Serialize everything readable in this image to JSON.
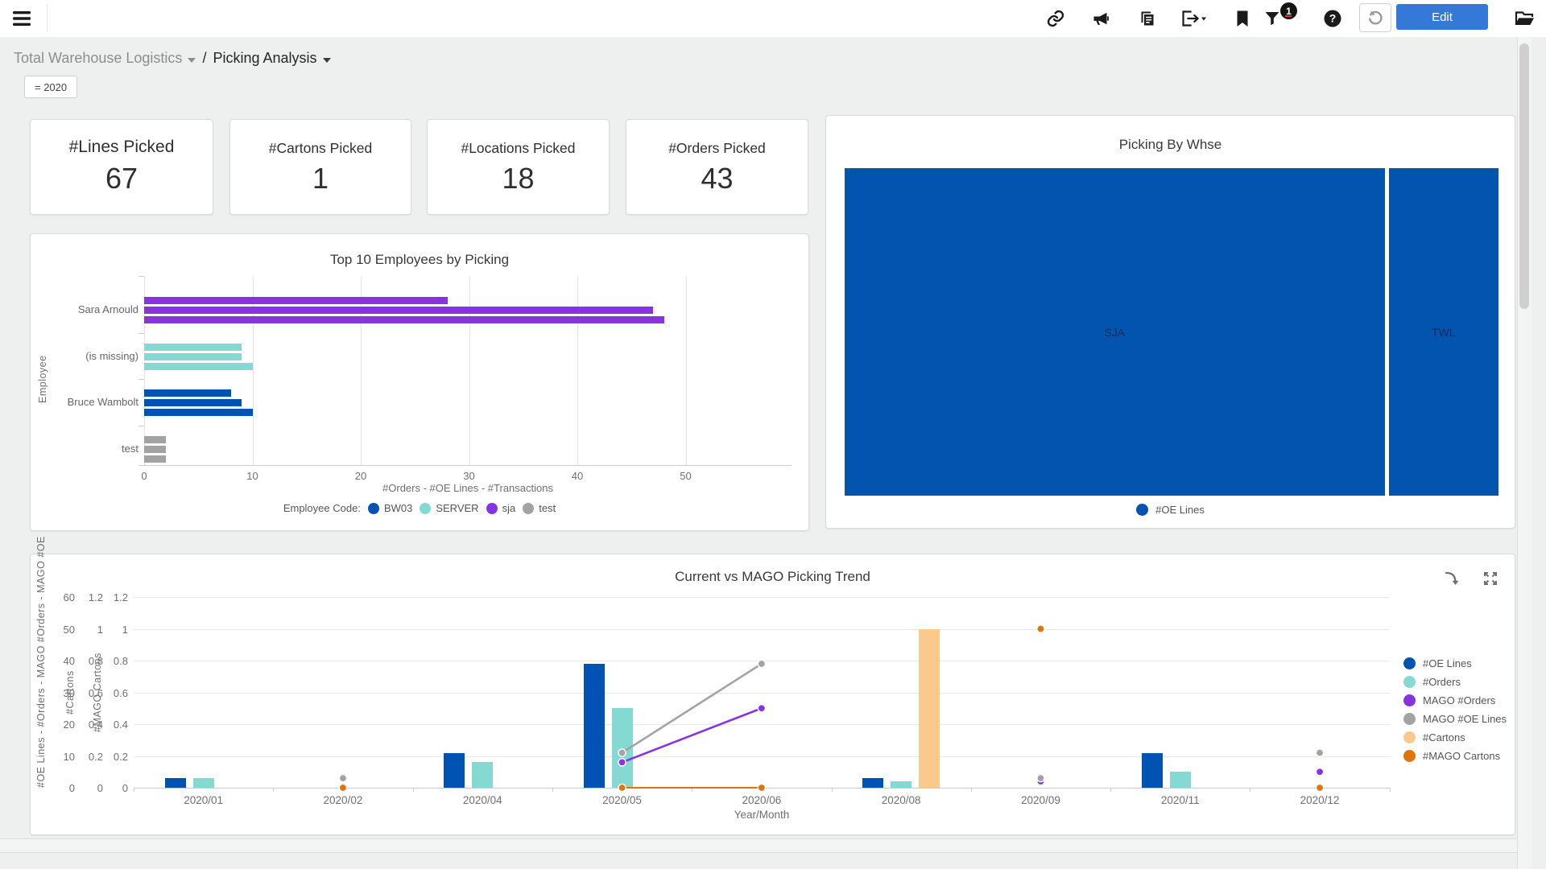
{
  "colors": {
    "blue": "#0053b2",
    "teal": "#84d9d3",
    "purple": "#8833e1",
    "gray": "#a3a3a3",
    "peach": "#fbc98b",
    "orange": "#e07409",
    "edit_button": "#3579d8",
    "badge_bg": "#141414",
    "badge_text": "#ffffff",
    "treemap_blue": "#0254af"
  },
  "topbar": {
    "edit_label": "Edit",
    "filter_badge": "1",
    "icons": [
      "menu",
      "link",
      "megaphone",
      "copy-pages",
      "export",
      "bookmark",
      "filter",
      "help",
      "refresh",
      "folder"
    ]
  },
  "breadcrumb": {
    "folder": "Total Warehouse Logistics",
    "page": "Picking Analysis",
    "filter_chip": "= 2020"
  },
  "kpis": [
    {
      "label": "#Lines Picked",
      "value": "67"
    },
    {
      "label": "#Cartons Picked",
      "value": "1"
    },
    {
      "label": "#Locations Picked",
      "value": "18"
    },
    {
      "label": "#Orders Picked",
      "value": "43"
    }
  ],
  "chart_data": [
    {
      "type": "bar",
      "title": "Top 10 Employees by Picking",
      "y_axis_label": "Employee",
      "x_axis_label": "#Orders  -  #OE Lines  -  #Transactions",
      "x_ticks": [
        0,
        10,
        20,
        30,
        40,
        50
      ],
      "x_max": 58.5,
      "legend_title": "Employee Code:",
      "legend": [
        {
          "label": "BW03",
          "color": "blue"
        },
        {
          "label": "SERVER",
          "color": "teal"
        },
        {
          "label": "sja",
          "color": "purple"
        },
        {
          "label": "test",
          "color": "gray"
        }
      ],
      "rows": [
        {
          "name": "Sara Arnould",
          "color": "purple",
          "values": [
            28,
            47,
            48
          ]
        },
        {
          "name": "(is missing)",
          "color": "teal",
          "values": [
            9,
            9,
            10
          ]
        },
        {
          "name": "Bruce Wambolt",
          "color": "blue",
          "values": [
            8,
            9,
            10
          ]
        },
        {
          "name": "test",
          "color": "gray",
          "values": [
            2,
            2,
            2
          ]
        }
      ]
    },
    {
      "type": "treemap",
      "title": "Picking By Whse",
      "legend_label": "#OE Lines",
      "segments": [
        {
          "label": "SJA",
          "share": 0.831
        },
        {
          "label": "TWL",
          "share": 0.169
        }
      ]
    },
    {
      "type": "bar+line",
      "title": "Current vs MAGO Picking Trend",
      "x_axis_label": "Year/Month",
      "categories": [
        "2020/01",
        "2020/02",
        "2020/04",
        "2020/05",
        "2020/06",
        "2020/08",
        "2020/09",
        "2020/11",
        "2020/12"
      ],
      "axes": [
        {
          "label": "#OE Lines - #Orders - MAGO #Orders - MAGO #OE",
          "ticks": [
            0,
            10,
            20,
            30,
            40,
            50,
            60
          ],
          "max": 60
        },
        {
          "label": "#Cartons",
          "ticks": [
            0,
            0.2,
            0.4,
            0.6,
            0.8,
            1,
            1.2
          ],
          "max": 1.2
        },
        {
          "label": "#MAGO Cartons",
          "ticks": [
            0,
            0.2,
            0.4,
            0.6,
            0.8,
            1,
            1.2
          ],
          "max": 1.2
        }
      ],
      "bar_series": [
        {
          "name": "#OE Lines",
          "color": "blue",
          "axis": 0,
          "values": [
            3,
            null,
            11,
            39,
            null,
            3,
            null,
            11,
            null
          ]
        },
        {
          "name": "#Orders",
          "color": "teal",
          "axis": 0,
          "values": [
            3,
            null,
            8,
            25,
            null,
            2,
            null,
            5,
            null
          ]
        },
        {
          "name": "#Cartons",
          "color": "peach",
          "axis": 1,
          "values": [
            null,
            null,
            null,
            null,
            null,
            1,
            null,
            null,
            null
          ]
        }
      ],
      "line_series": [
        {
          "name": "#MAGO Cartons",
          "color": "orange",
          "axis": 2,
          "values": [
            null,
            0,
            null,
            0,
            0,
            null,
            1,
            null,
            0
          ]
        },
        {
          "name": "MAGO #Orders",
          "color": "purple",
          "axis": 0,
          "values": [
            null,
            3,
            null,
            8,
            25,
            null,
            2,
            null,
            5
          ]
        },
        {
          "name": "MAGO #OE Lines",
          "color": "gray",
          "axis": 0,
          "values": [
            null,
            3,
            null,
            11,
            39,
            null,
            3,
            null,
            11
          ]
        }
      ],
      "legend": [
        {
          "label": "#OE Lines",
          "color": "blue"
        },
        {
          "label": "#Orders",
          "color": "teal"
        },
        {
          "label": "MAGO #Orders",
          "color": "purple"
        },
        {
          "label": "MAGO #OE Lines",
          "color": "gray"
        },
        {
          "label": "#Cartons",
          "color": "peach"
        },
        {
          "label": "#MAGO Cartons",
          "color": "orange"
        }
      ]
    }
  ]
}
